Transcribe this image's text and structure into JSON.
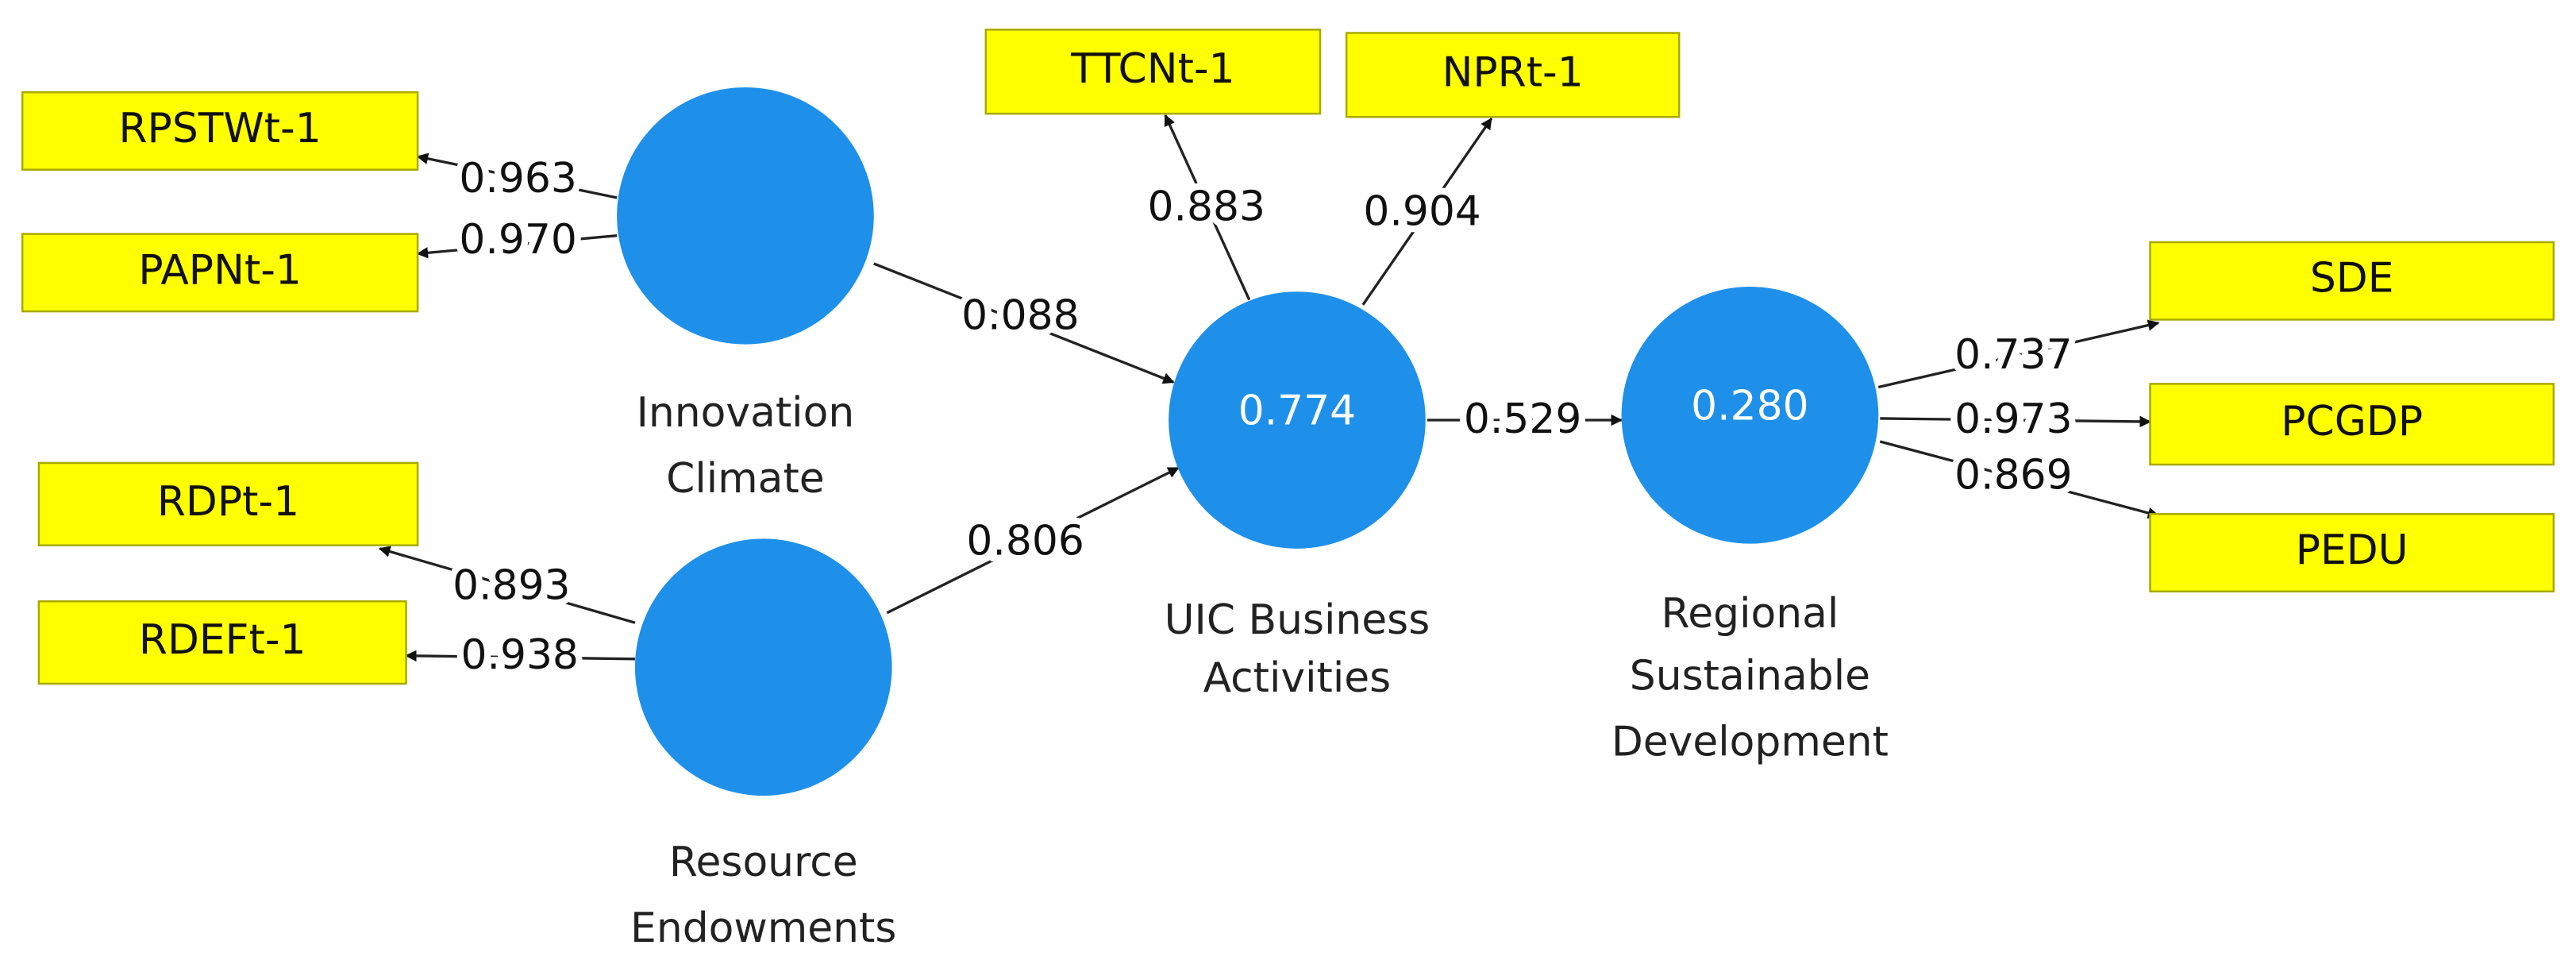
{
  "constructs": [
    {
      "label_lines": [
        "Innovation",
        "Climate"
      ]
    },
    {
      "label_lines": [
        "Resource",
        "Endowments"
      ]
    },
    {
      "label_lines": [
        "UIC Business",
        "Activities"
      ],
      "r2": "0.774"
    },
    {
      "label_lines": [
        "Regional",
        "Sustainable",
        "Development"
      ],
      "r2": "0.280"
    }
  ],
  "indicators": [
    {
      "name": "RPSTWt-1"
    },
    {
      "name": "PAPNt-1"
    },
    {
      "name": "RDPt-1"
    },
    {
      "name": "RDEFt-1"
    },
    {
      "name": "TTCNt-1"
    },
    {
      "name": "NPRt-1"
    },
    {
      "name": "SDE"
    },
    {
      "name": "PCGDP"
    },
    {
      "name": "PEDU"
    }
  ],
  "loadings": [
    {
      "indicator": "RPSTWt-1",
      "value": "0.963"
    },
    {
      "indicator": "PAPNt-1",
      "value": "0.970"
    },
    {
      "indicator": "RDPt-1",
      "value": "0.893"
    },
    {
      "indicator": "RDEFt-1",
      "value": "0.938"
    },
    {
      "indicator": "TTCNt-1",
      "value": "0.883"
    },
    {
      "indicator": "NPRt-1",
      "value": "0.904"
    },
    {
      "indicator": "SDE",
      "value": "0.737"
    },
    {
      "indicator": "PCGDP",
      "value": "0.973"
    },
    {
      "indicator": "PEDU",
      "value": "0.869"
    }
  ],
  "paths": [
    {
      "value": "0.088"
    },
    {
      "value": "0.806"
    },
    {
      "value": "0.529"
    }
  ]
}
